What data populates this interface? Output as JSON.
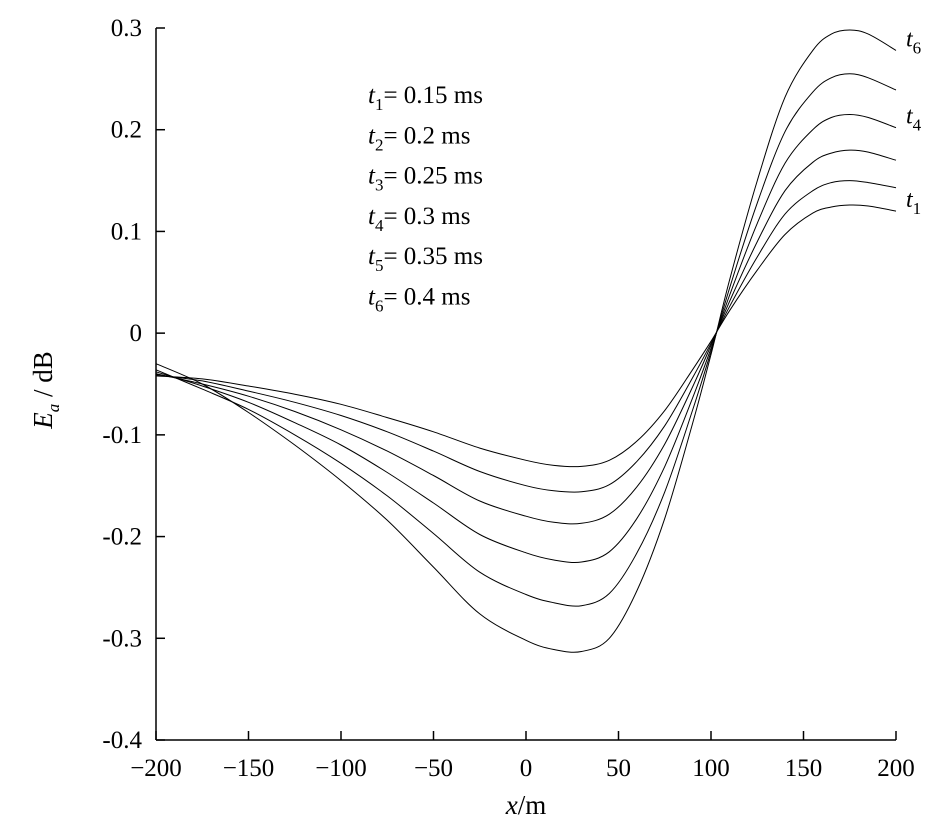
{
  "chart_data": {
    "type": "line",
    "xlabel": {
      "var": "x",
      "unit": "/m"
    },
    "ylabel": {
      "var": "E",
      "sub": "a",
      "unit": " / dB"
    },
    "xlim": [
      -200,
      200
    ],
    "ylim": [
      -0.4,
      0.3
    ],
    "x_ticks": [
      -200,
      -150,
      -100,
      -50,
      0,
      50,
      100,
      150,
      200
    ],
    "x_tick_labels": [
      "−200",
      "−150",
      "−100",
      "−50",
      "0",
      "50",
      "100",
      "150",
      "200"
    ],
    "y_ticks": [
      0.3,
      0.2,
      0.1,
      0,
      -0.1,
      -0.2,
      -0.3,
      -0.4
    ],
    "y_tick_labels": [
      "0.3",
      "0.2",
      "0.1",
      "0",
      "-0.1",
      "-0.2",
      "-0.3",
      "-0.4"
    ],
    "grid": false,
    "legend_position": "top-center",
    "x": [
      -200,
      -175,
      -150,
      -125,
      -100,
      -75,
      -50,
      -25,
      0,
      15,
      30,
      45,
      60,
      75,
      90,
      100,
      110,
      125,
      140,
      155,
      165,
      175,
      185,
      200
    ],
    "series": [
      {
        "name": "t1",
        "var": "t",
        "sub": "1",
        "value": "= 0.15 ms",
        "values": [
          -0.042,
          -0.045,
          -0.052,
          -0.06,
          -0.07,
          -0.083,
          -0.097,
          -0.113,
          -0.125,
          -0.13,
          -0.131,
          -0.125,
          -0.106,
          -0.076,
          -0.036,
          -0.008,
          0.022,
          0.062,
          0.097,
          0.118,
          0.124,
          0.126,
          0.125,
          0.12
        ]
      },
      {
        "name": "t2",
        "var": "t",
        "sub": "2",
        "value": "= 0.2 ms",
        "values": [
          -0.041,
          -0.047,
          -0.057,
          -0.068,
          -0.081,
          -0.097,
          -0.116,
          -0.136,
          -0.15,
          -0.155,
          -0.156,
          -0.149,
          -0.126,
          -0.091,
          -0.044,
          -0.01,
          0.026,
          0.075,
          0.117,
          0.14,
          0.148,
          0.15,
          0.148,
          0.143
        ]
      },
      {
        "name": "t3",
        "var": "t",
        "sub": "3",
        "value": "= 0.25 ms",
        "values": [
          -0.04,
          -0.05,
          -0.062,
          -0.077,
          -0.095,
          -0.116,
          -0.14,
          -0.165,
          -0.18,
          -0.186,
          -0.187,
          -0.178,
          -0.151,
          -0.109,
          -0.053,
          -0.012,
          0.031,
          0.09,
          0.14,
          0.168,
          0.177,
          0.18,
          0.178,
          0.17
        ]
      },
      {
        "name": "t4",
        "var": "t",
        "sub": "4",
        "value": "= 0.3 ms",
        "values": [
          -0.038,
          -0.052,
          -0.068,
          -0.088,
          -0.11,
          -0.137,
          -0.167,
          -0.198,
          -0.216,
          -0.223,
          -0.225,
          -0.215,
          -0.182,
          -0.131,
          -0.064,
          -0.015,
          0.037,
          0.108,
          0.167,
          0.2,
          0.212,
          0.215,
          0.212,
          0.202
        ]
      },
      {
        "name": "t5",
        "var": "t",
        "sub": "5",
        "value": "= 0.35 ms",
        "values": [
          -0.036,
          -0.055,
          -0.075,
          -0.1,
          -0.128,
          -0.16,
          -0.197,
          -0.235,
          -0.257,
          -0.265,
          -0.268,
          -0.256,
          -0.216,
          -0.156,
          -0.076,
          -0.018,
          0.044,
          0.128,
          0.198,
          0.237,
          0.251,
          0.255,
          0.251,
          0.239
        ]
      },
      {
        "name": "t6",
        "var": "t",
        "sub": "6",
        "value": "= 0.4 ms",
        "values": [
          -0.03,
          -0.05,
          -0.078,
          -0.11,
          -0.145,
          -0.184,
          -0.23,
          -0.276,
          -0.302,
          -0.311,
          -0.313,
          -0.3,
          -0.253,
          -0.182,
          -0.089,
          -0.021,
          0.052,
          0.15,
          0.232,
          0.278,
          0.294,
          0.298,
          0.294,
          0.278
        ]
      }
    ],
    "curve_labels": [
      {
        "series": "t6",
        "var": "t",
        "sub": "6"
      },
      {
        "series": "t4",
        "var": "t",
        "sub": "4"
      },
      {
        "series": "t1",
        "var": "t",
        "sub": "1"
      }
    ]
  }
}
